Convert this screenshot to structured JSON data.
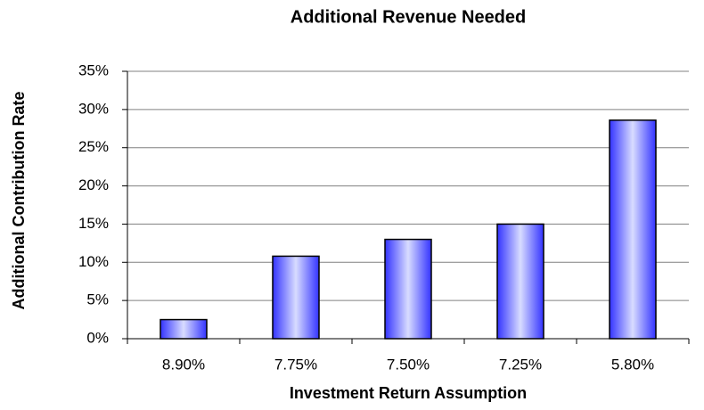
{
  "chart_data": {
    "type": "bar",
    "title": "Additional Revenue Needed",
    "x_label": "Investment Return Assumption",
    "y_label": "Additional Contribution Rate",
    "categories": [
      "8.90%",
      "7.75%",
      "7.50%",
      "7.25%",
      "5.80%"
    ],
    "values": [
      2.5,
      10.8,
      13,
      15,
      28.6
    ],
    "color": "#3333ff",
    "ylim": [
      0,
      35
    ],
    "yticks": [
      {
        "value": 0,
        "label": "0%"
      },
      {
        "value": 5,
        "label": "5%"
      },
      {
        "value": 10,
        "label": "10%"
      },
      {
        "value": 15,
        "label": "15%"
      },
      {
        "value": 20,
        "label": "20%"
      },
      {
        "value": 25,
        "label": "25%"
      },
      {
        "value": 30,
        "label": "30%"
      },
      {
        "value": 35,
        "label": "35%"
      }
    ],
    "grid": true
  }
}
